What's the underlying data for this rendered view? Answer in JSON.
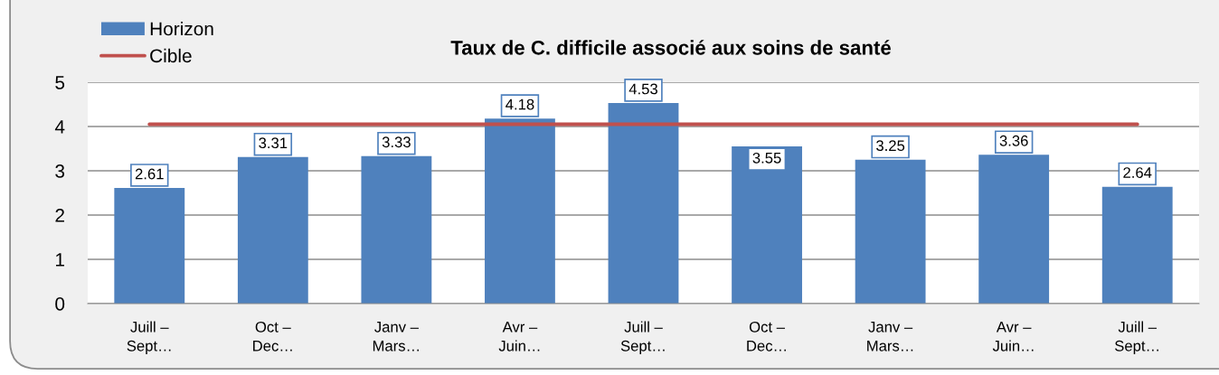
{
  "chart_data": {
    "type": "bar",
    "title": "Taux de C. difficile associé aux soins de santé",
    "categories": [
      "Juill –\nSept…",
      "Oct –\nDec…",
      "Janv –\nMars…",
      "Avr –\nJuin…",
      "Juill –\nSept…",
      "Oct –\nDec…",
      "Janv –\nMars…",
      "Avr –\nJuin…",
      "Juill –\nSept…"
    ],
    "series": [
      {
        "name": "Horizon",
        "color": "#4f81bd",
        "values": [
          2.61,
          3.31,
          3.33,
          4.18,
          4.53,
          3.55,
          3.25,
          3.36,
          2.64
        ],
        "value_labels": [
          "2.61",
          "3.31",
          "3.33",
          "4.18",
          "4.53",
          "3.55",
          "3.25",
          "3.36",
          "2.64"
        ]
      },
      {
        "name": "Cible",
        "type": "line",
        "color": "#c0504d",
        "values": [
          4.05,
          4.05,
          4.05,
          4.05,
          4.05,
          4.05,
          4.05,
          4.05,
          4.05
        ]
      }
    ],
    "ylim": [
      0,
      5
    ],
    "yticks": [
      0,
      1,
      2,
      3,
      4,
      5
    ],
    "grid": "y",
    "legend": "top left"
  }
}
